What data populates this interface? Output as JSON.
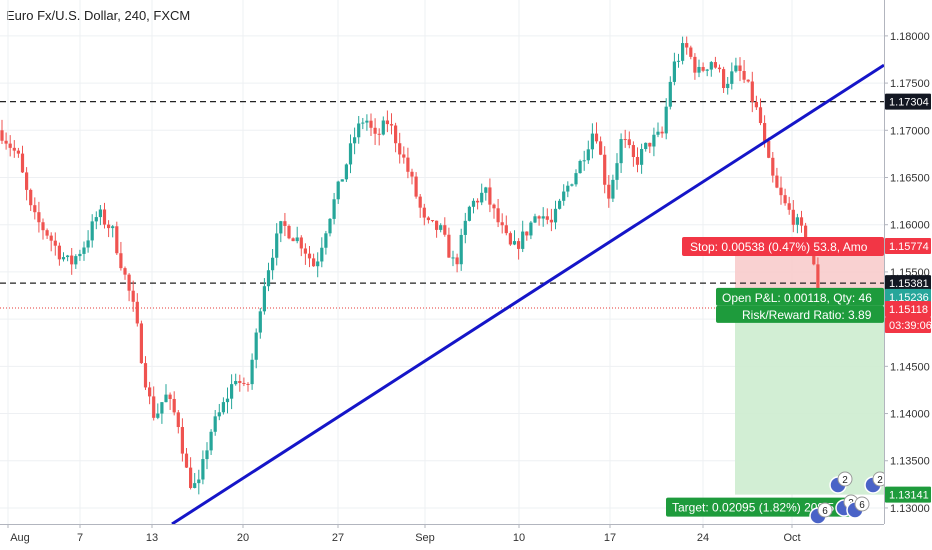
{
  "title": "Euro Fx/U.S. Dollar, 240, FXCM",
  "colors": {
    "up": "#26a69a",
    "down": "#ef5350",
    "trendline": "#1515c8",
    "stop_zone": "#f8c9c9",
    "target_zone": "#cdeccf",
    "stop_label": "#f23645",
    "target_label": "#1e9b3c",
    "grid": "#eef0f3"
  },
  "chart_data": {
    "type": "candlestick",
    "x_ticks": [
      "Aug",
      "7",
      "13",
      "20",
      "27",
      "Sep",
      "10",
      "17",
      "24",
      "Oct"
    ],
    "y_ticks": [
      "1.13000",
      "1.13500",
      "1.14000",
      "1.14500",
      "1.15000",
      "1.15500",
      "1.16000",
      "1.16500",
      "1.17000",
      "1.17500",
      "1.18000"
    ],
    "ylim": [
      1.1283,
      1.1838
    ],
    "grid": true,
    "price_path": [
      [
        0,
        1.17
      ],
      [
        18,
        1.1672
      ],
      [
        32,
        1.161
      ],
      [
        48,
        1.159
      ],
      [
        58,
        1.1572
      ],
      [
        70,
        1.1558
      ],
      [
        85,
        1.158
      ],
      [
        98,
        1.1612
      ],
      [
        112,
        1.1595
      ],
      [
        125,
        1.1545
      ],
      [
        135,
        1.1505
      ],
      [
        140,
        1.147
      ],
      [
        148,
        1.142
      ],
      [
        155,
        1.1395
      ],
      [
        165,
        1.142
      ],
      [
        178,
        1.1392
      ],
      [
        188,
        1.133
      ],
      [
        198,
        1.132
      ],
      [
        210,
        1.138
      ],
      [
        222,
        1.1405
      ],
      [
        236,
        1.144
      ],
      [
        246,
        1.142
      ],
      [
        256,
        1.148
      ],
      [
        262,
        1.153
      ],
      [
        272,
        1.157
      ],
      [
        282,
        1.16
      ],
      [
        292,
        1.159
      ],
      [
        302,
        1.158
      ],
      [
        315,
        1.1555
      ],
      [
        328,
        1.1605
      ],
      [
        342,
        1.165
      ],
      [
        355,
        1.1695
      ],
      [
        365,
        1.1715
      ],
      [
        375,
        1.169
      ],
      [
        388,
        1.171
      ],
      [
        400,
        1.168
      ],
      [
        412,
        1.1645
      ],
      [
        425,
        1.16
      ],
      [
        440,
        1.1595
      ],
      [
        455,
        1.1555
      ],
      [
        470,
        1.162
      ],
      [
        485,
        1.1635
      ],
      [
        497,
        1.1605
      ],
      [
        512,
        1.1572
      ],
      [
        525,
        1.159
      ],
      [
        538,
        1.1615
      ],
      [
        552,
        1.16
      ],
      [
        565,
        1.1635
      ],
      [
        580,
        1.1665
      ],
      [
        595,
        1.1705
      ],
      [
        608,
        1.1628
      ],
      [
        622,
        1.1692
      ],
      [
        635,
        1.1665
      ],
      [
        650,
        1.1688
      ],
      [
        662,
        1.1695
      ],
      [
        672,
        1.1765
      ],
      [
        685,
        1.179
      ],
      [
        698,
        1.176
      ],
      [
        712,
        1.1775
      ],
      [
        724,
        1.175
      ],
      [
        738,
        1.1765
      ],
      [
        750,
        1.174
      ],
      [
        760,
        1.171
      ],
      [
        767,
        1.167
      ],
      [
        775,
        1.164
      ],
      [
        785,
        1.162
      ],
      [
        795,
        1.1605
      ],
      [
        805,
        1.1585
      ],
      [
        812,
        1.157
      ],
      [
        818,
        1.1515
      ]
    ],
    "horizontal_levels": [
      {
        "price": 1.17304,
        "label": "1.17304",
        "style": "dashed"
      },
      {
        "price": 1.15381,
        "label": "1.15381",
        "style": "dashed"
      },
      {
        "price": 1.15118,
        "label": "1.15118",
        "style": "dotted-red"
      }
    ],
    "trendline": {
      "from_price": 1.1283,
      "to_price": 1.1769
    },
    "price_tags": [
      {
        "price": 1.15774,
        "label": "1.15774",
        "color": "#f23645"
      },
      {
        "price": 1.15236,
        "label": "1.15236",
        "color": "#26a69a"
      },
      {
        "price": 1.15118,
        "label": "1.15118",
        "color": "#f23645"
      },
      {
        "price": 1.13141,
        "label": "1.13141",
        "color": "#1e9b3c"
      }
    ],
    "countdown": "03:39:06",
    "position": {
      "stop_label": "Stop: 0.00538 (0.47%) 53.8, Amo",
      "pnl_label": "Open P&L: 0.00118, Qty: 46",
      "rr_label": "Risk/Reward Ratio: 3.89",
      "target_label": "Target: 0.02095 (1.82%) 209.5",
      "entry": 1.15236,
      "stop": 1.15774,
      "target": 1.13141
    },
    "event_markers": [
      "2",
      "2",
      "6",
      "3",
      "6"
    ]
  }
}
